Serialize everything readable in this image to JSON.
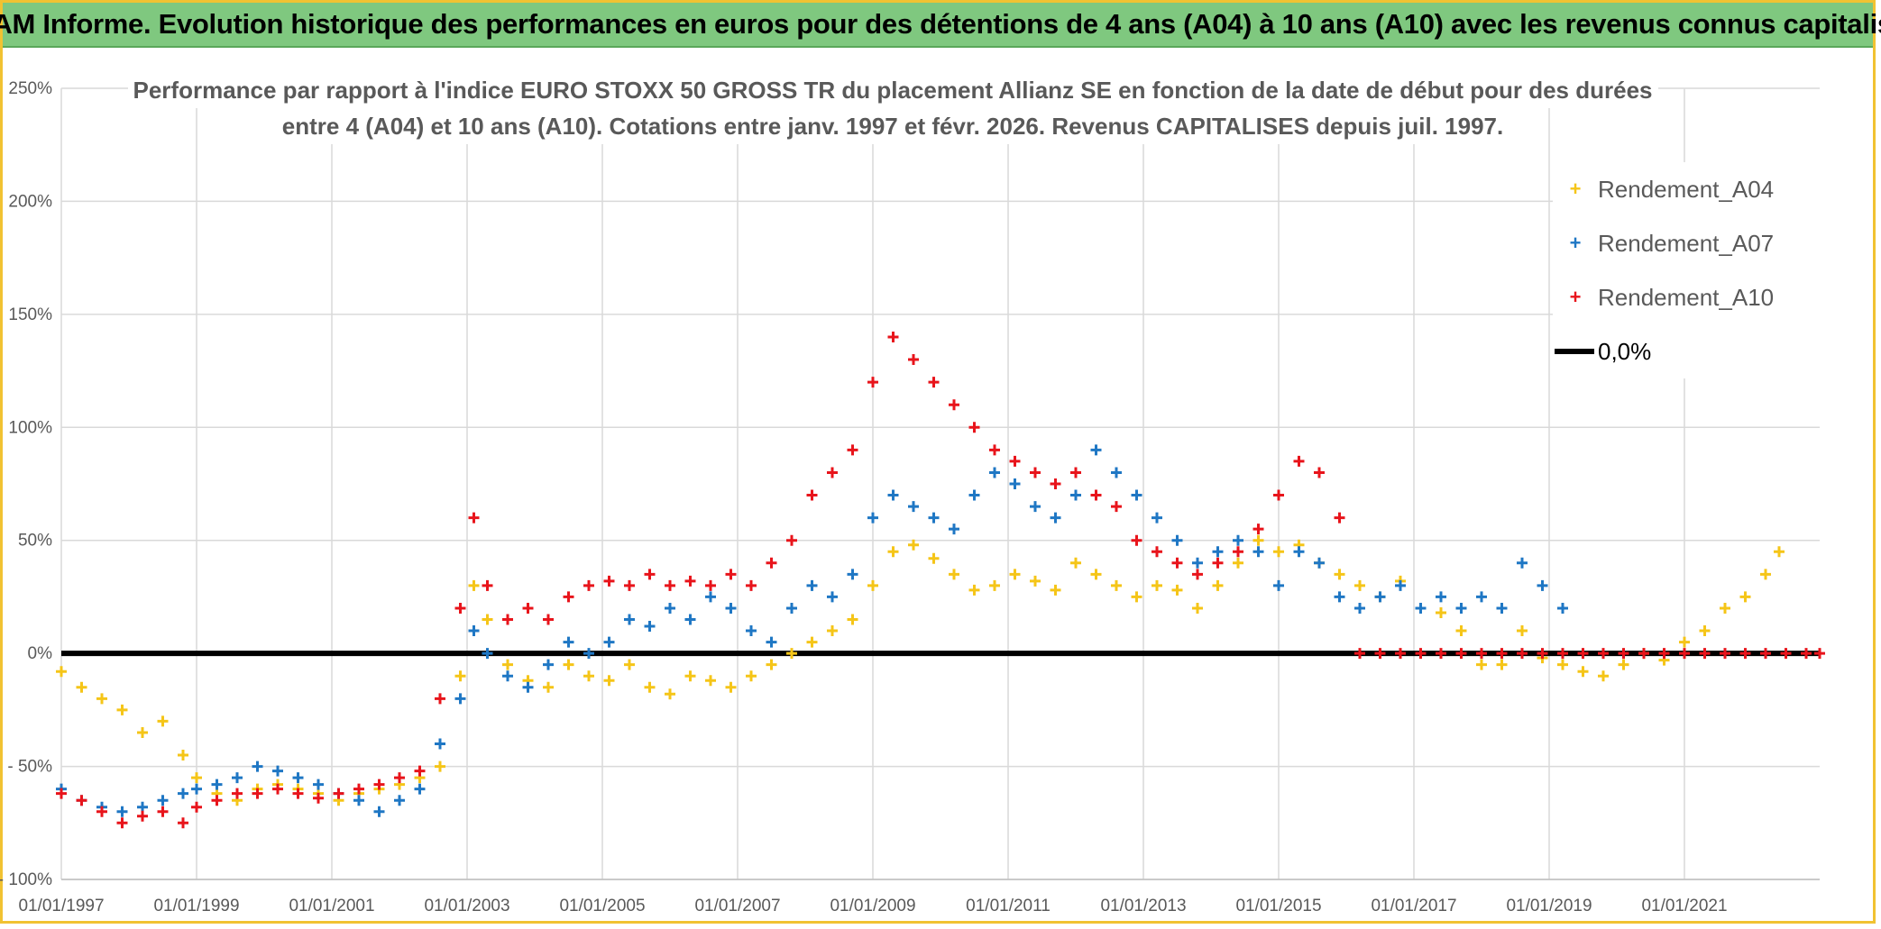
{
  "banner": {
    "title": "ADAM Informe. Evolution historique des performances en euros pour des détentions de 4 ans (A04) à 10 ans (A10) avec les revenus connus capitalisés"
  },
  "chart_data": {
    "type": "scatter",
    "title_line1": "Performance par rapport à l'indice EURO STOXX 50 GROSS TR  du placement Allianz SE en fonction de la date de début pour des durées",
    "title_line2": "entre 4 (A04) et 10 ans (A10). Cotations entre janv. 1997 et févr. 2026. Revenus CAPITALISES depuis juil. 1997.",
    "xlim": [
      1997.0,
      2023.0
    ],
    "ylim": [
      -100,
      250
    ],
    "x_ticks": [
      {
        "value": 1997,
        "label": "01/01/1997"
      },
      {
        "value": 1999,
        "label": "01/01/1999"
      },
      {
        "value": 2001,
        "label": "01/01/2001"
      },
      {
        "value": 2003,
        "label": "01/01/2003"
      },
      {
        "value": 2005,
        "label": "01/01/2005"
      },
      {
        "value": 2007,
        "label": "01/01/2007"
      },
      {
        "value": 2009,
        "label": "01/01/2009"
      },
      {
        "value": 2011,
        "label": "01/01/2011"
      },
      {
        "value": 2013,
        "label": "01/01/2013"
      },
      {
        "value": 2015,
        "label": "01/01/2015"
      },
      {
        "value": 2017,
        "label": "01/01/2017"
      },
      {
        "value": 2019,
        "label": "01/01/2019"
      },
      {
        "value": 2021,
        "label": "01/01/2021"
      }
    ],
    "y_ticks": [
      {
        "value": 250,
        "label": "250%"
      },
      {
        "value": 200,
        "label": "200%"
      },
      {
        "value": 150,
        "label": "150%"
      },
      {
        "value": 100,
        "label": "100%"
      },
      {
        "value": 50,
        "label": "50%"
      },
      {
        "value": 0,
        "label": "0%"
      },
      {
        "value": -50,
        "label": "- 50%"
      },
      {
        "value": -100,
        "label": "- 100%"
      }
    ],
    "zero_line_label": "0,0%",
    "series": [
      {
        "name": "Rendement_A04",
        "color": "#f5c518",
        "x": [
          1997.0,
          1997.3,
          1997.6,
          1997.9,
          1998.2,
          1998.5,
          1998.8,
          1999.0,
          1999.3,
          1999.6,
          1999.9,
          2000.2,
          2000.5,
          2000.8,
          2001.1,
          2001.4,
          2001.7,
          2002.0,
          2002.3,
          2002.6,
          2002.9,
          2003.1,
          2003.3,
          2003.6,
          2003.9,
          2004.2,
          2004.5,
          2004.8,
          2005.1,
          2005.4,
          2005.7,
          2006.0,
          2006.3,
          2006.6,
          2006.9,
          2007.2,
          2007.5,
          2007.8,
          2008.1,
          2008.4,
          2008.7,
          2009.0,
          2009.3,
          2009.6,
          2009.9,
          2010.2,
          2010.5,
          2010.8,
          2011.1,
          2011.4,
          2011.7,
          2012.0,
          2012.3,
          2012.6,
          2012.9,
          2013.2,
          2013.5,
          2013.8,
          2014.1,
          2014.4,
          2014.7,
          2015.0,
          2015.3,
          2015.6,
          2015.9,
          2016.2,
          2016.5,
          2016.8,
          2017.1,
          2017.4,
          2017.7,
          2018.0,
          2018.3,
          2018.6,
          2018.9,
          2019.2,
          2019.5,
          2019.8,
          2020.1,
          2020.4,
          2020.7,
          2021.0,
          2021.3,
          2021.6,
          2021.9,
          2022.2,
          2022.4
        ],
        "values": [
          -8,
          -15,
          -20,
          -25,
          -35,
          -30,
          -45,
          -55,
          -62,
          -65,
          -60,
          -58,
          -60,
          -62,
          -65,
          -62,
          -60,
          -58,
          -55,
          -50,
          -10,
          30,
          15,
          -5,
          -12,
          -15,
          -5,
          -10,
          -12,
          -5,
          -15,
          -18,
          -10,
          -12,
          -15,
          -10,
          -5,
          0,
          5,
          10,
          15,
          30,
          45,
          48,
          42,
          35,
          28,
          30,
          35,
          32,
          28,
          40,
          35,
          30,
          25,
          30,
          28,
          20,
          30,
          40,
          50,
          45,
          48,
          40,
          35,
          30,
          25,
          32,
          20,
          18,
          10,
          -5,
          -5,
          10,
          -2,
          -5,
          -8,
          -10,
          -5,
          0,
          -3,
          5,
          10,
          20,
          25,
          35,
          45
        ]
      },
      {
        "name": "Rendement_A07",
        "color": "#1f77c4",
        "x": [
          1997.0,
          1997.3,
          1997.6,
          1997.9,
          1998.2,
          1998.5,
          1998.8,
          1999.0,
          1999.3,
          1999.6,
          1999.9,
          2000.2,
          2000.5,
          2000.8,
          2001.1,
          2001.4,
          2001.7,
          2002.0,
          2002.3,
          2002.6,
          2002.9,
          2003.1,
          2003.3,
          2003.6,
          2003.9,
          2004.2,
          2004.5,
          2004.8,
          2005.1,
          2005.4,
          2005.7,
          2006.0,
          2006.3,
          2006.6,
          2006.9,
          2007.2,
          2007.5,
          2007.8,
          2008.1,
          2008.4,
          2008.7,
          2009.0,
          2009.3,
          2009.6,
          2009.9,
          2010.2,
          2010.5,
          2010.8,
          2011.1,
          2011.4,
          2011.7,
          2012.0,
          2012.3,
          2012.6,
          2012.9,
          2013.2,
          2013.5,
          2013.8,
          2014.1,
          2014.4,
          2014.7,
          2015.0,
          2015.3,
          2015.6,
          2015.9,
          2016.2,
          2016.5,
          2016.8,
          2017.1,
          2017.4,
          2017.7,
          2018.0,
          2018.3,
          2018.6,
          2018.9,
          2019.2
        ],
        "values": [
          -60,
          -65,
          -68,
          -70,
          -68,
          -65,
          -62,
          -60,
          -58,
          -55,
          -50,
          -52,
          -55,
          -58,
          -62,
          -65,
          -70,
          -65,
          -60,
          -40,
          -20,
          10,
          0,
          -10,
          -15,
          -5,
          5,
          0,
          5,
          15,
          12,
          20,
          15,
          25,
          20,
          10,
          5,
          20,
          30,
          25,
          35,
          60,
          70,
          65,
          60,
          55,
          70,
          80,
          75,
          65,
          60,
          70,
          90,
          80,
          70,
          60,
          50,
          40,
          45,
          50,
          45,
          30,
          45,
          40,
          25,
          20,
          25,
          30,
          20,
          25,
          20,
          25,
          20,
          40,
          30,
          20
        ]
      },
      {
        "name": "Rendement_A10",
        "color": "#e8141b",
        "x": [
          1997.0,
          1997.3,
          1997.6,
          1997.9,
          1998.2,
          1998.5,
          1998.8,
          1999.0,
          1999.3,
          1999.6,
          1999.9,
          2000.2,
          2000.5,
          2000.8,
          2001.1,
          2001.4,
          2001.7,
          2002.0,
          2002.3,
          2002.6,
          2002.9,
          2003.1,
          2003.3,
          2003.6,
          2003.9,
          2004.2,
          2004.5,
          2004.8,
          2005.1,
          2005.4,
          2005.7,
          2006.0,
          2006.3,
          2006.6,
          2006.9,
          2007.2,
          2007.5,
          2007.8,
          2008.1,
          2008.4,
          2008.7,
          2009.0,
          2009.3,
          2009.6,
          2009.9,
          2010.2,
          2010.5,
          2010.8,
          2011.1,
          2011.4,
          2011.7,
          2012.0,
          2012.3,
          2012.6,
          2012.9,
          2013.2,
          2013.5,
          2013.8,
          2014.1,
          2014.4,
          2014.7,
          2015.0,
          2015.3,
          2015.6,
          2015.9,
          2016.2,
          2016.5,
          2016.8,
          2017.1,
          2017.4,
          2017.7,
          2018.0,
          2018.3,
          2018.6,
          2018.9,
          2019.2,
          2019.5,
          2019.8,
          2020.1,
          2020.4,
          2020.7,
          2021.0,
          2021.3,
          2021.6,
          2021.9,
          2022.2,
          2022.5,
          2022.8,
          2023.0
        ],
        "values": [
          -62,
          -65,
          -70,
          -75,
          -72,
          -70,
          -75,
          -68,
          -65,
          -62,
          -62,
          -60,
          -62,
          -64,
          -62,
          -60,
          -58,
          -55,
          -52,
          -20,
          20,
          60,
          30,
          15,
          20,
          15,
          25,
          30,
          32,
          30,
          35,
          30,
          32,
          30,
          35,
          30,
          40,
          50,
          70,
          80,
          90,
          120,
          140,
          130,
          120,
          110,
          100,
          90,
          85,
          80,
          75,
          80,
          70,
          65,
          50,
          45,
          40,
          35,
          40,
          45,
          55,
          70,
          85,
          80,
          60,
          0,
          0,
          0,
          0,
          0,
          0,
          0,
          0,
          0,
          0,
          0,
          0,
          0,
          0,
          0,
          0,
          0,
          0,
          0,
          0,
          0,
          0,
          0,
          0
        ]
      }
    ]
  }
}
